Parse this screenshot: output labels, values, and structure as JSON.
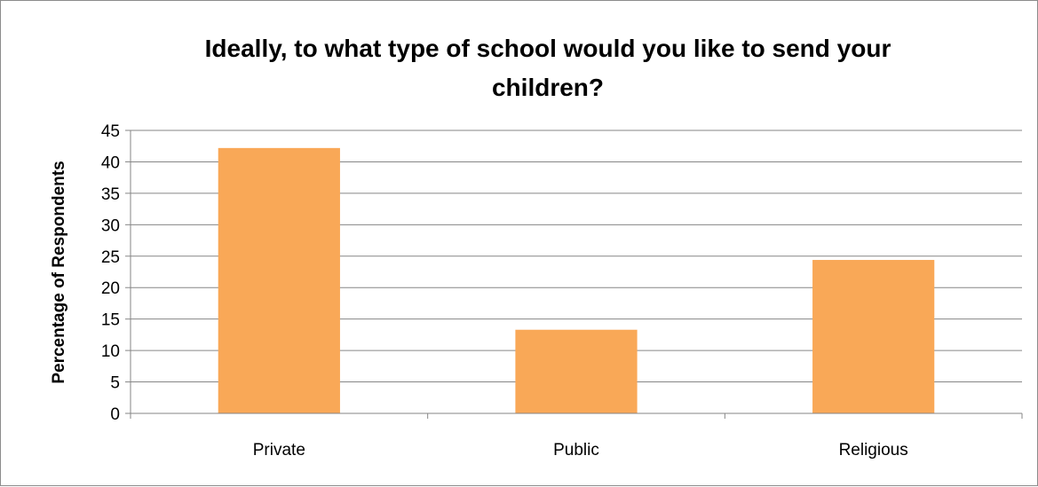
{
  "chart_data": {
    "type": "bar",
    "title_lines": [
      "Ideally, to what type of school would you like to send your",
      "children?"
    ],
    "xlabel": "",
    "ylabel": "Percentage of Respondents",
    "categories": [
      "Private",
      "Public",
      "Religious"
    ],
    "values": [
      42.2,
      13.3,
      24.4
    ],
    "ylim": [
      0,
      45
    ],
    "yticks": [
      0,
      5,
      10,
      15,
      20,
      25,
      30,
      35,
      40,
      45
    ],
    "grid": true,
    "legend": "none",
    "bar_color": "#F9A857",
    "grid_color": "#868686",
    "axis_color": "#868686"
  }
}
